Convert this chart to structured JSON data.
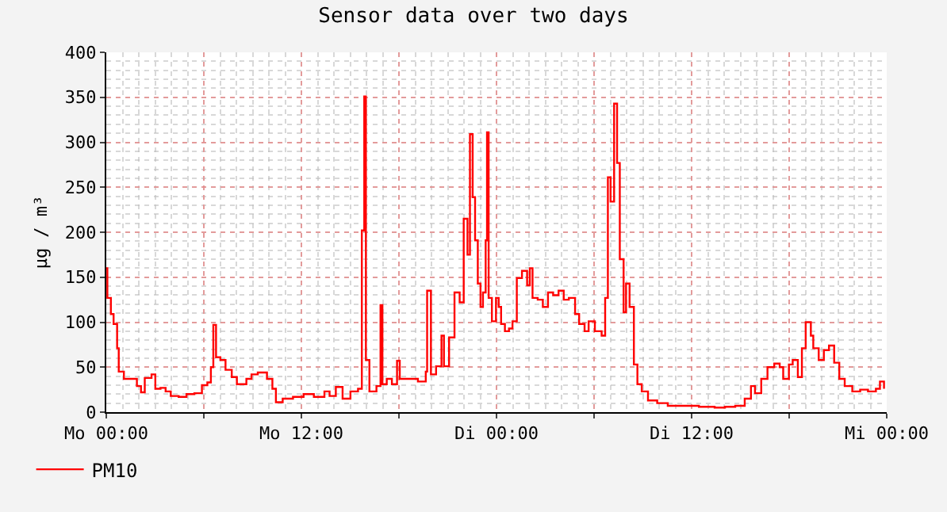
{
  "chart_data": {
    "type": "step",
    "title": "Sensor data over two days",
    "ylabel": "µg / m³",
    "xlim": [
      "--01-01T00:00",
      "--01-03T00:00"
    ],
    "xticks": [
      {
        "value": "--01-01T00:00",
        "label": "Mo 00:00"
      },
      {
        "value": "--01-01T06:00",
        "label": null
      },
      {
        "value": "--01-01T12:00",
        "label": "Mo 12:00"
      },
      {
        "value": "--01-01T18:00",
        "label": null
      },
      {
        "value": "--01-02T00:00",
        "label": "Di 00:00"
      },
      {
        "value": "--01-02T06:00",
        "label": null
      },
      {
        "value": "--01-02T12:00",
        "label": "Di 12:00"
      },
      {
        "value": "--01-02T18:00",
        "label": null
      },
      {
        "value": "--01-03T00:00",
        "label": "Mi 00:00"
      }
    ],
    "ylim": [
      0,
      400
    ],
    "yticks": [
      0,
      50,
      100,
      150,
      200,
      250,
      300,
      350,
      400
    ],
    "grid": true,
    "legend": "bottom left",
    "marker": "none",
    "line_style": "solid",
    "series": [
      {
        "name": "PM10",
        "color": "#ff0000",
        "x": [
          "--01-01T00:00",
          "--01-01T00:04",
          "--01-01T00:17",
          "--01-01T00:27",
          "--01-01T00:40",
          "--01-01T00:46",
          "--01-01T01:05",
          "--01-01T01:25",
          "--01-01T01:53",
          "--01-01T02:08",
          "--01-01T02:22",
          "--01-01T02:47",
          "--01-01T03:01",
          "--01-01T03:20",
          "--01-01T03:39",
          "--01-01T03:58",
          "--01-01T04:27",
          "--01-01T04:56",
          "--01-01T05:25",
          "--01-01T05:53",
          "--01-01T06:13",
          "--01-01T06:26",
          "--01-01T06:35",
          "--01-01T06:45",
          "--01-01T07:01",
          "--01-01T07:20",
          "--01-01T07:43",
          "--01-01T08:02",
          "--01-01T08:37",
          "--01-01T08:56",
          "--01-01T09:19",
          "--01-01T09:53",
          "--01-01T10:13",
          "--01-01T10:26",
          "--01-01T10:51",
          "--01-01T11:29",
          "--01-01T12:08",
          "--01-01T12:46",
          "--01-01T13:25",
          "--01-01T13:44",
          "--01-01T14:07",
          "--01-01T14:32",
          "--01-01T15:01",
          "--01-01T15:29",
          "--01-01T15:43",
          "--01-01T15:52",
          "--01-01T15:58",
          "--01-01T16:11",
          "--01-01T16:37",
          "--01-01T16:52",
          "--01-01T16:59",
          "--01-01T17:15",
          "--01-01T17:34",
          "--01-01T17:53",
          "--01-01T18:03",
          "--01-01T18:32",
          "--01-01T19:10",
          "--01-01T19:39",
          "--01-01T19:44",
          "--01-01T19:58",
          "--01-01T20:17",
          "--01-01T20:37",
          "--01-01T20:46",
          "--01-01T21:05",
          "--01-01T21:25",
          "--01-01T21:44",
          "--01-01T21:59",
          "--01-01T22:13",
          "--01-01T22:22",
          "--01-01T22:32",
          "--01-01T22:41",
          "--01-01T22:51",
          "--01-01T23:01",
          "--01-01T23:10",
          "--01-01T23:20",
          "--01-01T23:25",
          "--01-01T23:31",
          "--01-01T23:43",
          "--01-01T23:58",
          "--01-02T00:08",
          "--01-02T00:17",
          "--01-02T00:31",
          "--01-02T00:46",
          "--01-02T00:59",
          "--01-02T01:15",
          "--01-02T01:34",
          "--01-02T01:53",
          "--01-02T02:03",
          "--01-02T02:13",
          "--01-02T02:32",
          "--01-02T02:51",
          "--01-02T03:10",
          "--01-02T03:29",
          "--01-02T03:49",
          "--01-02T04:08",
          "--01-02T04:27",
          "--01-02T04:50",
          "--01-02T05:05",
          "--01-02T05:25",
          "--01-02T05:40",
          "--01-02T06:03",
          "--01-02T06:28",
          "--01-02T06:41",
          "--01-02T06:51",
          "--01-02T07:01",
          "--01-02T07:14",
          "--01-02T07:25",
          "--01-02T07:35",
          "--01-02T07:49",
          "--01-02T07:58",
          "--01-02T08:11",
          "--01-02T08:27",
          "--01-02T08:40",
          "--01-02T08:56",
          "--01-02T09:19",
          "--01-02T09:53",
          "--01-02T10:32",
          "--01-02T11:29",
          "--01-02T12:27",
          "--01-02T13:25",
          "--01-02T14:03",
          "--01-02T14:41",
          "--01-02T15:16",
          "--01-02T15:39",
          "--01-02T15:54",
          "--01-02T16:17",
          "--01-02T16:40",
          "--01-02T17:05",
          "--01-02T17:25",
          "--01-02T17:38",
          "--01-02T17:59",
          "--01-02T18:13",
          "--01-02T18:32",
          "--01-02T18:47",
          "--01-02T19:01",
          "--01-02T19:20",
          "--01-02T19:29",
          "--01-02T19:49",
          "--01-02T20:08",
          "--01-02T20:27",
          "--01-02T20:46",
          "--01-02T21:05",
          "--01-02T21:25",
          "--01-02T21:53",
          "--01-02T22:22",
          "--01-02T22:51",
          "--01-02T23:20",
          "--01-02T23:35",
          "--01-02T23:50"
        ],
        "values": [
          160,
          127,
          109,
          98,
          71,
          45,
          37,
          37,
          29,
          22,
          38,
          42,
          26,
          27,
          23,
          18,
          17,
          20,
          21,
          30,
          33,
          50,
          97,
          61,
          58,
          47,
          39,
          31,
          37,
          42,
          44,
          37,
          26,
          11,
          15,
          17,
          20,
          17,
          23,
          18,
          28,
          15,
          23,
          26,
          202,
          351,
          58,
          23,
          29,
          119,
          31,
          37,
          31,
          57,
          37,
          37,
          34,
          45,
          135,
          42,
          51,
          85,
          51,
          83,
          133,
          122,
          215,
          175,
          309,
          239,
          191,
          143,
          117,
          133,
          191,
          311,
          127,
          101,
          127,
          117,
          98,
          90,
          93,
          101,
          149,
          157,
          141,
          160,
          127,
          125,
          117,
          133,
          130,
          135,
          125,
          127,
          109,
          98,
          90,
          101,
          90,
          85,
          127,
          261,
          234,
          343,
          277,
          170,
          111,
          143,
          117,
          53,
          31,
          23,
          13,
          10,
          7,
          7,
          6,
          5,
          6,
          7,
          15,
          29,
          21,
          37,
          50,
          54,
          50,
          37,
          53,
          58,
          39,
          71,
          100,
          85,
          71,
          58,
          69,
          74,
          55,
          37,
          29,
          23,
          25,
          23,
          26,
          34,
          26
        ]
      }
    ]
  }
}
